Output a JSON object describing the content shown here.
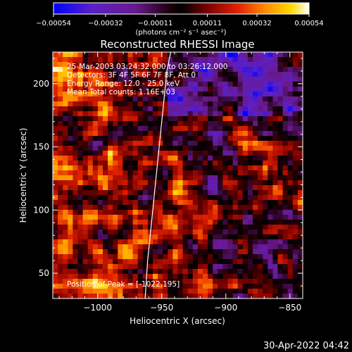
{
  "chart_data": {
    "type": "heatmap",
    "title": "Reconstructed RHESSI Image",
    "xlabel": "Heliocentric X (arcsec)",
    "ylabel": "Heliocentric Y (arcsec)",
    "xlim": [
      -1035,
      -840
    ],
    "ylim": [
      30,
      225
    ],
    "x_ticks": [
      -1000,
      -950,
      -900,
      -850
    ],
    "x_tick_labels": [
      "−1000",
      "−950",
      "−900",
      "−850"
    ],
    "y_ticks": [
      50,
      100,
      150,
      200
    ],
    "y_tick_labels": [
      "50",
      "100",
      "150",
      "200"
    ],
    "colorbar": {
      "ticks": [
        -0.00054,
        -0.00032,
        -0.00011,
        0.00011,
        0.00032,
        0.00054
      ],
      "tick_labels": [
        "−0.00054",
        "−0.00032",
        "−0.00011",
        "0.00011",
        "0.00032",
        "0.00054"
      ],
      "unit_label": "(photons cm⁻² s⁻¹ asec⁻²)",
      "range": [
        -0.00054,
        0.00054
      ],
      "colors": [
        "#0000ff",
        "#6a1aa8",
        "#3a0030",
        "#000000",
        "#8a0000",
        "#e03000",
        "#ff8c00",
        "#ffd000",
        "#ffffe8"
      ]
    },
    "annotations": [
      "25-Mar-2003 03:24:32.000 to 03:26:12.000",
      "Detectors: 3F 4F 5F 6F 7F 8F, Att 0",
      "Energy Range: 12.0 - 25.0 keV",
      "Mean    Total counts: 1.16E+03",
      "Position of Peak = [-1022,195]"
    ],
    "limb_curve": {
      "x": [
        -963,
        -961,
        -958,
        -955,
        -952,
        -949,
        -946,
        -943
      ],
      "y": [
        30,
        60,
        90,
        120,
        150,
        180,
        210,
        225
      ]
    },
    "peak": {
      "x": -1022,
      "y": 195
    }
  },
  "footer": {
    "date": "30-Apr-2022 04:42"
  }
}
